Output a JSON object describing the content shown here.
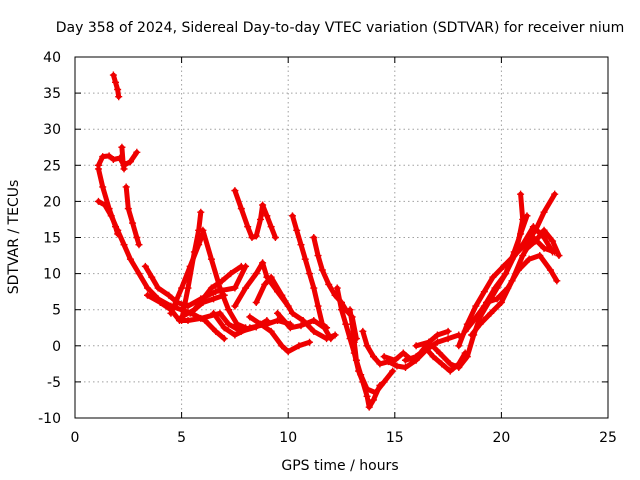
{
  "chart_data": {
    "type": "scatter",
    "title": "Day 358 of 2024, Sidereal Day-to-day VTEC variation (SDTVAR) for receiver nium",
    "xlabel": "GPS time / hours",
    "ylabel": "SDTVAR / TECUs",
    "xlim": [
      0,
      25
    ],
    "ylim": [
      -10,
      40
    ],
    "x_ticks": [
      0,
      5,
      10,
      15,
      20,
      25
    ],
    "y_ticks": [
      -10,
      -5,
      0,
      5,
      10,
      15,
      20,
      25,
      30,
      35,
      40
    ],
    "x_tick_labels": [
      "0",
      "5",
      "10",
      "15",
      "20",
      "25"
    ],
    "y_tick_labels": [
      "-10",
      "-5",
      "0",
      "5",
      "10",
      "15",
      "20",
      "25",
      "30",
      "35",
      "40"
    ],
    "grid": true,
    "marker": "plus",
    "color": "#ee0000",
    "series": [
      {
        "name": "s1",
        "points": [
          [
            1.8,
            37.5
          ],
          [
            1.9,
            36.5
          ],
          [
            2.0,
            35.5
          ],
          [
            2.05,
            34.5
          ]
        ]
      },
      {
        "name": "s2",
        "points": [
          [
            1.1,
            25.0
          ],
          [
            1.3,
            26.2
          ],
          [
            1.6,
            26.3
          ],
          [
            1.8,
            25.8
          ],
          [
            2.1,
            26.0
          ],
          [
            2.3,
            25.0
          ],
          [
            2.6,
            25.5
          ],
          [
            2.9,
            26.8
          ]
        ]
      },
      {
        "name": "s3",
        "points": [
          [
            2.2,
            27.5
          ],
          [
            2.25,
            25.5
          ],
          [
            2.3,
            24.5
          ]
        ]
      },
      {
        "name": "s4",
        "points": [
          [
            1.1,
            24.5
          ],
          [
            1.3,
            22.0
          ],
          [
            1.6,
            19.0
          ],
          [
            1.9,
            16.5
          ],
          [
            2.0,
            15.5
          ]
        ]
      },
      {
        "name": "s5",
        "points": [
          [
            1.1,
            20.0
          ],
          [
            1.4,
            19.5
          ],
          [
            1.7,
            18.0
          ],
          [
            2.0,
            16.0
          ]
        ]
      },
      {
        "name": "s6",
        "points": [
          [
            2.0,
            16.0
          ],
          [
            2.3,
            14.0
          ],
          [
            2.6,
            12.0
          ],
          [
            3.0,
            10.0
          ],
          [
            3.4,
            8.0
          ],
          [
            3.9,
            6.5
          ],
          [
            4.5,
            5.5
          ],
          [
            5.0,
            5.0
          ],
          [
            5.6,
            4.3
          ],
          [
            6.1,
            3.5
          ],
          [
            6.6,
            2.0
          ],
          [
            7.0,
            1.0
          ]
        ]
      },
      {
        "name": "s7",
        "points": [
          [
            2.4,
            22.0
          ],
          [
            2.5,
            19.0
          ],
          [
            2.7,
            17.0
          ],
          [
            2.9,
            15.0
          ],
          [
            3.0,
            14.0
          ]
        ]
      },
      {
        "name": "s8",
        "points": [
          [
            3.3,
            11.0
          ],
          [
            3.6,
            9.5
          ],
          [
            3.9,
            8.0
          ],
          [
            4.4,
            7.0
          ],
          [
            4.8,
            6.0
          ],
          [
            5.3,
            5.5
          ],
          [
            5.9,
            6.5
          ],
          [
            6.6,
            7.5
          ],
          [
            7.5,
            8.0
          ],
          [
            8.0,
            11.0
          ]
        ]
      },
      {
        "name": "s9",
        "points": [
          [
            3.4,
            7.0
          ],
          [
            4.0,
            6.0
          ],
          [
            4.5,
            5.0
          ],
          [
            4.9,
            3.5
          ],
          [
            5.3,
            3.5
          ],
          [
            5.9,
            3.8
          ],
          [
            6.8,
            4.5
          ],
          [
            7.2,
            3.0
          ],
          [
            7.8,
            2.0
          ],
          [
            8.5,
            2.6
          ],
          [
            9.0,
            3.5
          ]
        ]
      },
      {
        "name": "s10",
        "points": [
          [
            4.5,
            4.5
          ],
          [
            5.0,
            8.0
          ],
          [
            5.4,
            11.0
          ],
          [
            5.8,
            14.0
          ],
          [
            6.0,
            15.5
          ]
        ]
      },
      {
        "name": "s11",
        "points": [
          [
            5.0,
            3.5
          ],
          [
            5.3,
            8.0
          ],
          [
            5.6,
            13.0
          ],
          [
            5.8,
            16.0
          ],
          [
            5.9,
            18.5
          ]
        ]
      },
      {
        "name": "s12",
        "points": [
          [
            5.0,
            4.0
          ],
          [
            5.6,
            5.0
          ],
          [
            6.0,
            6.5
          ],
          [
            6.4,
            8.0
          ],
          [
            6.9,
            9.0
          ],
          [
            7.3,
            10.0
          ],
          [
            7.8,
            11.0
          ]
        ]
      },
      {
        "name": "s13",
        "points": [
          [
            5.4,
            4.5
          ],
          [
            6.0,
            6.0
          ],
          [
            6.5,
            6.5
          ],
          [
            7.0,
            7.0
          ]
        ]
      },
      {
        "name": "s14",
        "points": [
          [
            6.0,
            16.0
          ],
          [
            6.4,
            12.0
          ],
          [
            6.8,
            8.0
          ],
          [
            7.2,
            5.0
          ],
          [
            7.6,
            3.0
          ],
          [
            8.0,
            2.5
          ]
        ]
      },
      {
        "name": "s15",
        "points": [
          [
            6.5,
            4.5
          ],
          [
            7.0,
            2.5
          ],
          [
            7.5,
            1.5
          ],
          [
            8.2,
            2.5
          ],
          [
            9.0,
            3.0
          ],
          [
            9.5,
            3.5
          ],
          [
            10.1,
            3.0
          ]
        ]
      },
      {
        "name": "s16",
        "points": [
          [
            7.5,
            21.5
          ],
          [
            7.8,
            19.0
          ],
          [
            8.1,
            16.5
          ],
          [
            8.3,
            15.0
          ],
          [
            8.5,
            15.2
          ],
          [
            8.7,
            17.5
          ],
          [
            8.8,
            19.5
          ],
          [
            9.0,
            18.0
          ],
          [
            9.2,
            16.5
          ],
          [
            9.4,
            15.0
          ]
        ]
      },
      {
        "name": "s17",
        "points": [
          [
            7.5,
            5.5
          ],
          [
            8.0,
            8.0
          ],
          [
            8.5,
            10.0
          ],
          [
            8.8,
            11.5
          ],
          [
            9.0,
            9.5
          ],
          [
            9.5,
            7.5
          ],
          [
            10.0,
            5.5
          ]
        ]
      },
      {
        "name": "s18",
        "points": [
          [
            8.5,
            6.0
          ],
          [
            8.9,
            8.5
          ],
          [
            9.2,
            9.5
          ],
          [
            9.7,
            7.0
          ],
          [
            10.2,
            4.5
          ],
          [
            10.7,
            3.5
          ],
          [
            11.2,
            2.0
          ],
          [
            11.8,
            1.0
          ],
          [
            12.2,
            1.5
          ]
        ]
      },
      {
        "name": "s19",
        "points": [
          [
            8.2,
            4.0
          ],
          [
            8.7,
            3.0
          ],
          [
            9.2,
            2.0
          ],
          [
            9.7,
            0.0
          ],
          [
            10.0,
            -0.8
          ],
          [
            10.5,
            0.0
          ],
          [
            11.0,
            0.5
          ]
        ]
      },
      {
        "name": "s20",
        "points": [
          [
            9.5,
            4.5
          ],
          [
            10.1,
            2.5
          ],
          [
            10.6,
            2.8
          ],
          [
            11.2,
            3.5
          ],
          [
            11.7,
            2.5
          ],
          [
            12.0,
            1.0
          ]
        ]
      },
      {
        "name": "s21",
        "points": [
          [
            10.2,
            18.0
          ],
          [
            10.4,
            16.0
          ],
          [
            10.6,
            14.0
          ],
          [
            10.8,
            12.0
          ],
          [
            11.0,
            10.0
          ],
          [
            11.2,
            8.0
          ],
          [
            11.4,
            5.5
          ],
          [
            11.6,
            3.0
          ],
          [
            11.8,
            2.5
          ]
        ]
      },
      {
        "name": "s22",
        "points": [
          [
            11.2,
            15.0
          ],
          [
            11.4,
            12.5
          ],
          [
            11.6,
            10.5
          ],
          [
            11.9,
            8.5
          ],
          [
            12.2,
            7.0
          ],
          [
            12.5,
            6.0
          ],
          [
            12.7,
            5.0
          ],
          [
            13.0,
            4.0
          ],
          [
            13.2,
            1.0
          ]
        ]
      },
      {
        "name": "s23",
        "points": [
          [
            12.3,
            8.0
          ],
          [
            12.5,
            5.0
          ],
          [
            12.7,
            3.0
          ],
          [
            12.9,
            1.0
          ],
          [
            13.1,
            -1.0
          ],
          [
            13.3,
            -3.5
          ],
          [
            13.5,
            -5.0
          ],
          [
            13.7,
            -7.0
          ],
          [
            13.8,
            -8.5
          ],
          [
            14.0,
            -7.5
          ],
          [
            14.3,
            -5.5
          ]
        ]
      },
      {
        "name": "s24",
        "points": [
          [
            12.9,
            5.0
          ],
          [
            13.0,
            3.0
          ],
          [
            13.1,
            0.5
          ],
          [
            13.2,
            -2.0
          ],
          [
            13.4,
            -4.0
          ],
          [
            13.7,
            -6.0
          ],
          [
            14.1,
            -6.5
          ],
          [
            14.5,
            -5.0
          ],
          [
            14.9,
            -3.5
          ]
        ]
      },
      {
        "name": "s25",
        "points": [
          [
            13.5,
            2.0
          ],
          [
            13.7,
            0.0
          ],
          [
            14.0,
            -1.5
          ],
          [
            14.3,
            -2.5
          ],
          [
            14.7,
            -2.2
          ],
          [
            15.1,
            -2.8
          ],
          [
            15.5,
            -3.0
          ],
          [
            16.0,
            -2.0
          ],
          [
            16.5,
            -0.5
          ],
          [
            17.0,
            0.5
          ],
          [
            17.5,
            1.0
          ],
          [
            18.0,
            1.5
          ]
        ]
      },
      {
        "name": "s26",
        "points": [
          [
            14.5,
            -1.5
          ],
          [
            15.0,
            -2.0
          ],
          [
            15.4,
            -1.0
          ],
          [
            15.8,
            -2.0
          ],
          [
            16.2,
            -1.0
          ],
          [
            16.6,
            0.5
          ],
          [
            17.0,
            1.5
          ],
          [
            17.5,
            2.0
          ]
        ]
      },
      {
        "name": "s27",
        "points": [
          [
            15.5,
            -2.0
          ],
          [
            16.0,
            -1.5
          ],
          [
            16.5,
            -0.5
          ],
          [
            16.8,
            -1.5
          ],
          [
            17.2,
            -2.5
          ],
          [
            17.6,
            -3.5
          ],
          [
            18.0,
            -2.5
          ],
          [
            18.3,
            -1.0
          ]
        ]
      },
      {
        "name": "s28",
        "points": [
          [
            16.0,
            0.0
          ],
          [
            16.6,
            0.5
          ],
          [
            17.1,
            -1.0
          ],
          [
            17.6,
            -2.5
          ],
          [
            18.0,
            -3.0
          ],
          [
            18.4,
            -1.5
          ],
          [
            18.7,
            1.5
          ],
          [
            19.0,
            4.0
          ],
          [
            19.4,
            6.0
          ],
          [
            19.8,
            8.0
          ],
          [
            20.2,
            10.0
          ],
          [
            20.6,
            13.0
          ],
          [
            20.9,
            15.5
          ],
          [
            21.2,
            18.0
          ]
        ]
      },
      {
        "name": "s29",
        "points": [
          [
            18.0,
            0.0
          ],
          [
            18.4,
            3.0
          ],
          [
            18.8,
            5.5
          ],
          [
            19.2,
            7.5
          ],
          [
            19.6,
            9.5
          ],
          [
            20.1,
            11.0
          ],
          [
            20.6,
            12.5
          ],
          [
            21.1,
            14.0
          ],
          [
            21.6,
            16.0
          ],
          [
            22.0,
            18.5
          ],
          [
            22.5,
            21.0
          ]
        ]
      },
      {
        "name": "s30",
        "points": [
          [
            18.3,
            2.0
          ],
          [
            18.7,
            3.5
          ],
          [
            19.2,
            5.5
          ],
          [
            19.7,
            8.0
          ],
          [
            20.2,
            10.0
          ],
          [
            20.7,
            13.0
          ],
          [
            21.0,
            17.5
          ],
          [
            20.9,
            21.0
          ]
        ]
      },
      {
        "name": "s31",
        "points": [
          [
            18.6,
            1.5
          ],
          [
            19.0,
            3.0
          ],
          [
            19.5,
            4.5
          ],
          [
            20.0,
            6.0
          ],
          [
            20.5,
            9.0
          ],
          [
            21.0,
            12.5
          ],
          [
            21.5,
            15.0
          ],
          [
            22.0,
            13.5
          ],
          [
            22.5,
            13.0
          ]
        ]
      },
      {
        "name": "s32",
        "points": [
          [
            19.3,
            6.0
          ],
          [
            19.8,
            6.5
          ],
          [
            20.3,
            8.0
          ],
          [
            20.8,
            10.5
          ],
          [
            21.3,
            12.0
          ],
          [
            21.8,
            12.5
          ],
          [
            22.3,
            10.5
          ],
          [
            22.6,
            9.0
          ]
        ]
      },
      {
        "name": "s33",
        "points": [
          [
            20.5,
            12.0
          ],
          [
            21.0,
            14.0
          ],
          [
            21.5,
            16.5
          ],
          [
            22.0,
            15.0
          ],
          [
            22.4,
            13.0
          ]
        ]
      },
      {
        "name": "s34",
        "points": [
          [
            21.2,
            13.5
          ],
          [
            21.6,
            14.5
          ],
          [
            22.0,
            16.0
          ],
          [
            22.4,
            14.5
          ],
          [
            22.7,
            12.5
          ]
        ]
      }
    ]
  }
}
